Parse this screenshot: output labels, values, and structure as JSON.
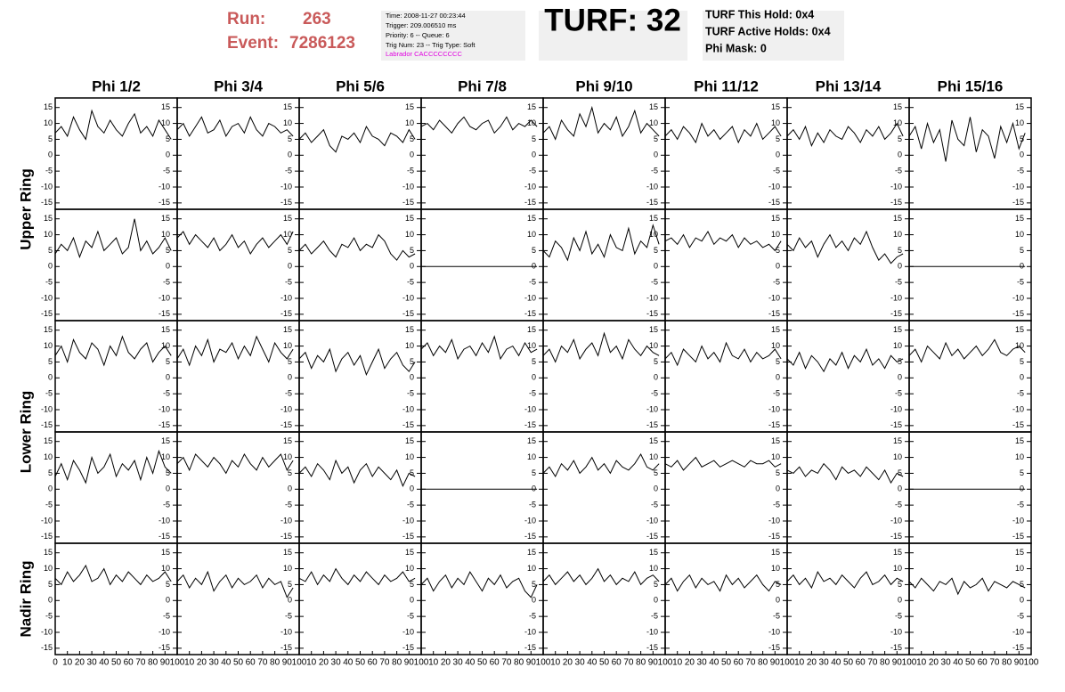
{
  "header": {
    "run_label": "Run:",
    "run": "263",
    "event_label": "Event:",
    "event": "7286123",
    "info": [
      "Time: 2008-11-27 00:23:44",
      "Trigger: 209.006510 ms",
      "Priority: 6 -- Queue: 6",
      "Trig Num: 23 -- Trig Type: Soft",
      "Labrador CACCCCCCCC"
    ],
    "turf": "TURF: 32",
    "turf_info": [
      "TURF This Hold: 0x4",
      "TURF Active Holds: 0x4",
      "Phi Mask: 0"
    ]
  },
  "chart_data": {
    "type": "line",
    "columns": [
      "Phi 1/2",
      "Phi 3/4",
      "Phi 5/6",
      "Phi 7/8",
      "Phi 9/10",
      "Phi 11/12",
      "Phi 13/14",
      "Phi 15/16"
    ],
    "rings": [
      "Upper Ring",
      "Lower Ring",
      "Nadir Ring"
    ],
    "color": "#000000",
    "xlim": [
      0,
      100
    ],
    "xticks": [
      0,
      10,
      20,
      30,
      40,
      50,
      60,
      70,
      80,
      90,
      100
    ],
    "ylim": [
      -17,
      18
    ],
    "yticks": [
      -15,
      -10,
      -5,
      0,
      5,
      10,
      15
    ],
    "x": [
      0,
      5,
      10,
      15,
      20,
      25,
      30,
      35,
      40,
      45,
      50,
      55,
      60,
      65,
      70,
      75,
      80,
      85,
      90,
      95
    ],
    "rows": [
      [
        [
          7,
          9,
          6,
          12,
          8,
          5,
          14,
          9,
          7,
          11,
          8,
          6,
          10,
          13,
          7,
          9,
          6,
          11,
          8,
          5
        ],
        [
          8,
          10,
          6,
          9,
          12,
          7,
          8,
          11,
          6,
          9,
          10,
          7,
          12,
          8,
          6,
          10,
          9,
          7,
          8,
          6
        ],
        [
          5,
          7,
          4,
          6,
          8,
          3,
          1,
          6,
          5,
          7,
          4,
          9,
          6,
          5,
          3,
          7,
          6,
          4,
          8,
          5
        ],
        [
          9,
          10,
          8,
          11,
          9,
          7,
          10,
          12,
          9,
          8,
          10,
          11,
          7,
          9,
          12,
          8,
          10,
          9,
          11,
          9
        ],
        [
          7,
          9,
          5,
          11,
          8,
          6,
          13,
          9,
          15,
          7,
          10,
          8,
          12,
          6,
          9,
          14,
          7,
          10,
          8,
          6
        ],
        [
          6,
          8,
          5,
          9,
          7,
          4,
          10,
          6,
          8,
          5,
          7,
          9,
          4,
          8,
          6,
          10,
          5,
          7,
          9,
          6
        ],
        [
          6,
          8,
          5,
          9,
          3,
          7,
          4,
          8,
          6,
          5,
          9,
          7,
          4,
          8,
          6,
          9,
          5,
          7,
          10,
          6
        ],
        [
          6,
          9,
          2,
          10,
          4,
          8,
          -2,
          11,
          5,
          3,
          12,
          1,
          8,
          6,
          -1,
          9,
          4,
          10,
          2,
          7
        ]
      ],
      [
        [
          4,
          7,
          5,
          9,
          3,
          8,
          6,
          11,
          5,
          7,
          9,
          4,
          6,
          15,
          5,
          8,
          4,
          6,
          9,
          5
        ],
        [
          9,
          11,
          7,
          10,
          8,
          6,
          9,
          5,
          7,
          10,
          6,
          8,
          4,
          7,
          9,
          6,
          8,
          10,
          7,
          11
        ],
        [
          5,
          7,
          4,
          6,
          8,
          5,
          3,
          7,
          6,
          9,
          5,
          7,
          6,
          10,
          8,
          4,
          2,
          5,
          3,
          4
        ],
        [
          0,
          0,
          0,
          0,
          0,
          0,
          0,
          0,
          0,
          0,
          0,
          0,
          0,
          0,
          0,
          0,
          0,
          0,
          0,
          0
        ],
        [
          5,
          3,
          8,
          6,
          2,
          9,
          5,
          11,
          4,
          7,
          3,
          10,
          6,
          5,
          12,
          4,
          8,
          6,
          13,
          7
        ],
        [
          8,
          9,
          7,
          10,
          6,
          9,
          8,
          11,
          7,
          9,
          8,
          10,
          6,
          9,
          7,
          8,
          6,
          7,
          5,
          8
        ],
        [
          7,
          5,
          9,
          6,
          8,
          3,
          7,
          10,
          6,
          8,
          5,
          9,
          7,
          11,
          6,
          2,
          4,
          1,
          3,
          4
        ],
        [
          0,
          0,
          0,
          0,
          0,
          0,
          0,
          0,
          0,
          0,
          0,
          0,
          0,
          0,
          0,
          0,
          0,
          0,
          0,
          0
        ]
      ],
      [
        [
          7,
          10,
          5,
          12,
          8,
          6,
          11,
          9,
          4,
          10,
          7,
          13,
          8,
          6,
          9,
          11,
          5,
          8,
          10,
          7
        ],
        [
          6,
          9,
          4,
          10,
          7,
          12,
          5,
          9,
          8,
          11,
          6,
          10,
          7,
          13,
          9,
          5,
          11,
          8,
          6,
          9
        ],
        [
          6,
          8,
          3,
          7,
          5,
          9,
          2,
          6,
          8,
          4,
          7,
          1,
          5,
          9,
          3,
          6,
          8,
          4,
          2,
          5
        ],
        [
          9,
          11,
          7,
          10,
          8,
          12,
          6,
          9,
          10,
          7,
          11,
          8,
          13,
          6,
          9,
          10,
          7,
          11,
          8,
          9
        ],
        [
          7,
          9,
          5,
          10,
          8,
          12,
          6,
          9,
          11,
          7,
          14,
          8,
          10,
          6,
          12,
          9,
          7,
          10,
          8,
          7
        ],
        [
          6,
          8,
          4,
          9,
          7,
          5,
          10,
          6,
          8,
          5,
          11,
          7,
          6,
          9,
          5,
          8,
          6,
          7,
          9,
          6
        ],
        [
          6,
          4,
          8,
          3,
          7,
          5,
          2,
          6,
          4,
          8,
          3,
          7,
          5,
          9,
          4,
          6,
          3,
          7,
          5,
          6
        ],
        [
          7,
          9,
          5,
          10,
          8,
          6,
          11,
          7,
          9,
          6,
          8,
          10,
          7,
          9,
          12,
          8,
          7,
          9,
          10,
          8
        ]
      ],
      [
        [
          4,
          8,
          3,
          9,
          6,
          2,
          10,
          5,
          7,
          11,
          4,
          8,
          6,
          9,
          3,
          10,
          5,
          12,
          7,
          5
        ],
        [
          8,
          10,
          6,
          11,
          9,
          7,
          10,
          8,
          5,
          9,
          7,
          11,
          8,
          6,
          10,
          7,
          9,
          11,
          6,
          9
        ],
        [
          5,
          7,
          4,
          8,
          6,
          3,
          9,
          5,
          7,
          2,
          6,
          8,
          4,
          7,
          5,
          3,
          6,
          1,
          5,
          4
        ],
        [
          0,
          0,
          0,
          0,
          0,
          0,
          0,
          0,
          0,
          0,
          0,
          0,
          0,
          0,
          0,
          0,
          0,
          0,
          0,
          0
        ],
        [
          5,
          7,
          4,
          8,
          6,
          9,
          5,
          7,
          10,
          6,
          8,
          5,
          9,
          7,
          6,
          8,
          11,
          7,
          6,
          8
        ],
        [
          8,
          7,
          9,
          6,
          8,
          10,
          7,
          8,
          9,
          7,
          8,
          9,
          8,
          7,
          9,
          8,
          8,
          9,
          7,
          8
        ],
        [
          6,
          5,
          7,
          4,
          6,
          5,
          8,
          6,
          3,
          7,
          5,
          6,
          4,
          7,
          5,
          3,
          6,
          2,
          5,
          4
        ],
        [
          0,
          0,
          0,
          0,
          0,
          0,
          0,
          0,
          0,
          0,
          0,
          0,
          0,
          0,
          0,
          0,
          0,
          0,
          0,
          0
        ]
      ],
      [
        [
          7,
          5,
          9,
          6,
          8,
          11,
          6,
          7,
          10,
          5,
          8,
          6,
          9,
          7,
          5,
          8,
          6,
          7,
          9,
          6
        ],
        [
          6,
          8,
          4,
          7,
          5,
          9,
          3,
          6,
          8,
          4,
          7,
          5,
          6,
          8,
          4,
          7,
          5,
          6,
          1,
          4
        ],
        [
          7,
          6,
          9,
          5,
          8,
          6,
          10,
          7,
          5,
          8,
          6,
          9,
          7,
          5,
          8,
          6,
          7,
          9,
          6,
          7
        ],
        [
          5,
          7,
          3,
          6,
          8,
          4,
          7,
          5,
          9,
          6,
          3,
          7,
          5,
          8,
          4,
          6,
          7,
          3,
          1,
          5
        ],
        [
          6,
          8,
          5,
          7,
          9,
          6,
          8,
          5,
          7,
          10,
          6,
          8,
          5,
          7,
          6,
          9,
          5,
          7,
          8,
          6
        ],
        [
          5,
          7,
          3,
          6,
          8,
          4,
          7,
          5,
          6,
          3,
          8,
          5,
          7,
          4,
          6,
          8,
          5,
          3,
          6,
          5
        ],
        [
          6,
          8,
          5,
          7,
          4,
          9,
          6,
          7,
          5,
          8,
          6,
          4,
          7,
          9,
          5,
          6,
          8,
          5,
          7,
          6
        ],
        [
          6,
          4,
          7,
          5,
          3,
          6,
          5,
          7,
          2,
          6,
          4,
          5,
          7,
          3,
          6,
          5,
          4,
          6,
          5,
          4
        ]
      ]
    ]
  }
}
